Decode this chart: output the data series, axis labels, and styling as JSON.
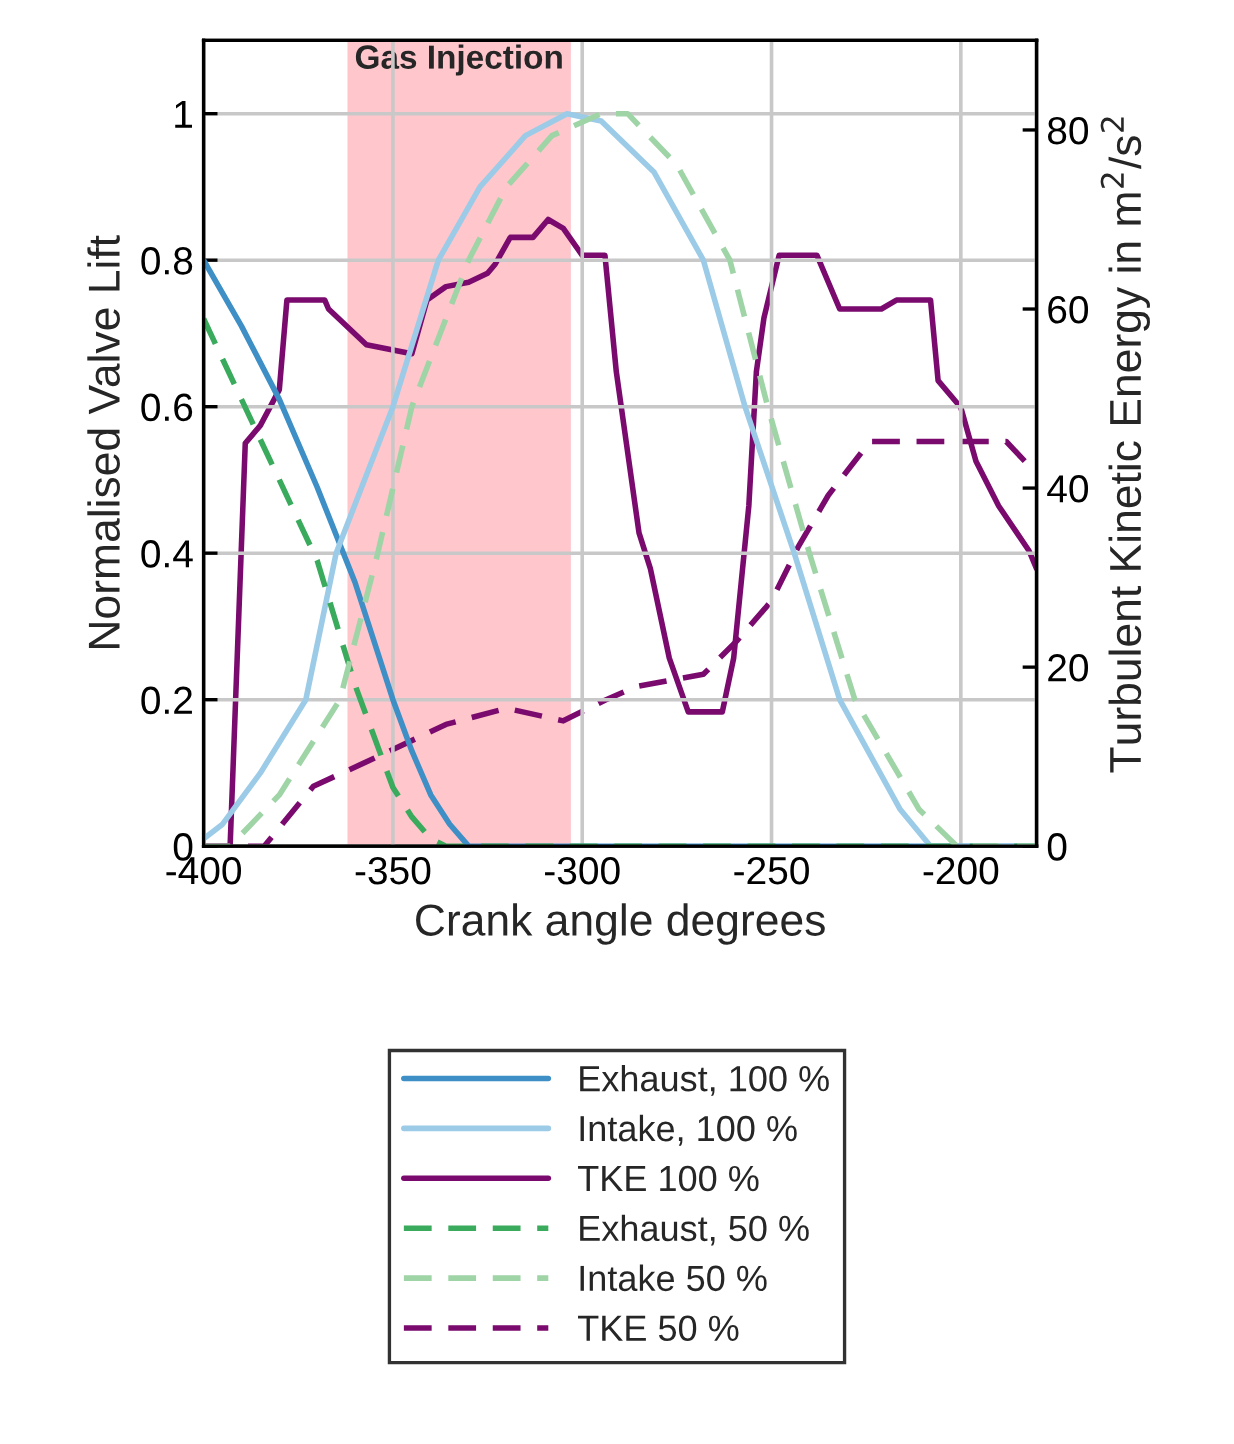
{
  "chart_data": {
    "type": "line",
    "xlabel": "Crank angle degrees",
    "ylabel": "Normalised Valve Lift",
    "y2label": "Turbulent Kinetic Energy in m$^{2}$/s$^{2}$",
    "xlim": [
      -400,
      -180
    ],
    "xticks": [
      -400,
      -350,
      -300,
      -250,
      -200
    ],
    "ylim": [
      0,
      1.1
    ],
    "yticks": [
      0,
      0.2,
      0.4,
      0.6,
      0.8,
      1
    ],
    "y2lim": [
      0,
      90
    ],
    "y2ticks": [
      0,
      20,
      40,
      60,
      80
    ],
    "grid": true,
    "legend": "bottom",
    "bands": [
      {
        "axis": "x",
        "from": -362,
        "to": -303,
        "label": "Gas Injection",
        "color": "#ffc6cc"
      }
    ],
    "series": [
      {
        "name": "Exhaust, 100 %",
        "color": "#3d8fc6",
        "line_style": "solid",
        "x": [
          -400,
          -390,
          -380,
          -370,
          -360,
          -350,
          -345,
          -340,
          -335,
          -330,
          -180
        ],
        "values": [
          0.8,
          0.71,
          0.61,
          0.49,
          0.36,
          0.2,
          0.13,
          0.07,
          0.03,
          0,
          0
        ]
      },
      {
        "name": "Intake, 100 %",
        "color": "#9ccbe8",
        "line_style": "solid",
        "x": [
          -400,
          -395,
          -385,
          -373,
          -365,
          -350,
          -338,
          -327,
          -315,
          -304,
          -295,
          -281,
          -268,
          -257,
          -244,
          -232,
          -216,
          -208,
          -180
        ],
        "values": [
          0.01,
          0.03,
          0.1,
          0.2,
          0.4,
          0.6,
          0.8,
          0.9,
          0.97,
          1,
          0.99,
          0.92,
          0.8,
          0.6,
          0.4,
          0.2,
          0.05,
          0,
          0
        ]
      },
      {
        "name": "TKE 100 %",
        "color": "#7a0a6e",
        "line_style": "solid",
        "axis": "y2",
        "x": [
          -400,
          -393,
          -389,
          -385,
          -380,
          -378,
          -368,
          -367,
          -357,
          -345,
          -341,
          -336,
          -330,
          -325,
          -323,
          -319,
          -313,
          -309,
          -305,
          -300,
          -294,
          -291,
          -285,
          -282,
          -277,
          -272,
          -263,
          -260,
          -256,
          -254,
          -252,
          -248,
          -238,
          -232,
          -221,
          -217,
          -208,
          -206,
          -200,
          -196,
          -190,
          -182,
          -180
        ],
        "values": [
          0,
          0,
          45,
          47,
          51,
          61,
          61,
          60,
          56,
          55,
          61,
          62.5,
          63,
          64,
          65,
          68,
          68,
          70,
          69,
          66,
          66,
          53,
          35,
          31,
          21,
          15,
          15,
          21,
          38,
          53,
          59,
          66,
          66,
          60,
          60,
          61,
          61,
          52,
          49,
          43,
          38,
          33,
          31
        ]
      },
      {
        "name": "Exhaust, 50 %",
        "color": "#3aaa5c",
        "line_style": "dashed",
        "x": [
          -400,
          -390,
          -380,
          -370,
          -360,
          -350,
          -345,
          -340,
          -336,
          -180
        ],
        "values": [
          0.72,
          0.61,
          0.5,
          0.39,
          0.22,
          0.08,
          0.04,
          0.01,
          0,
          0
        ]
      },
      {
        "name": "Intake 50 %",
        "color": "#9fd4a6",
        "line_style": "dashed",
        "x": [
          -400,
          -393,
          -380,
          -364,
          -354,
          -345,
          -330,
          -320,
          -308,
          -295,
          -288,
          -275,
          -261,
          -251,
          -240,
          -228,
          -211,
          -201,
          -180
        ],
        "values": [
          0,
          0,
          0.07,
          0.2,
          0.4,
          0.6,
          0.8,
          0.9,
          0.97,
          1,
          1,
          0.93,
          0.8,
          0.6,
          0.4,
          0.2,
          0.05,
          0,
          0
        ]
      },
      {
        "name": "TKE 50 %",
        "color": "#7a0a6e",
        "line_style": "dashed",
        "axis": "y2",
        "x": [
          -400,
          -384,
          -371,
          -353,
          -336,
          -320,
          -305,
          -294,
          -286,
          -268,
          -259,
          -250,
          -243,
          -235,
          -224,
          -188,
          -182,
          -180
        ],
        "values": [
          0,
          0,
          6.7,
          10.2,
          13.6,
          15.4,
          14,
          16.3,
          17.8,
          19.2,
          23,
          27.4,
          33.4,
          39.2,
          45.2,
          45.2,
          42.5,
          42
        ]
      }
    ]
  }
}
